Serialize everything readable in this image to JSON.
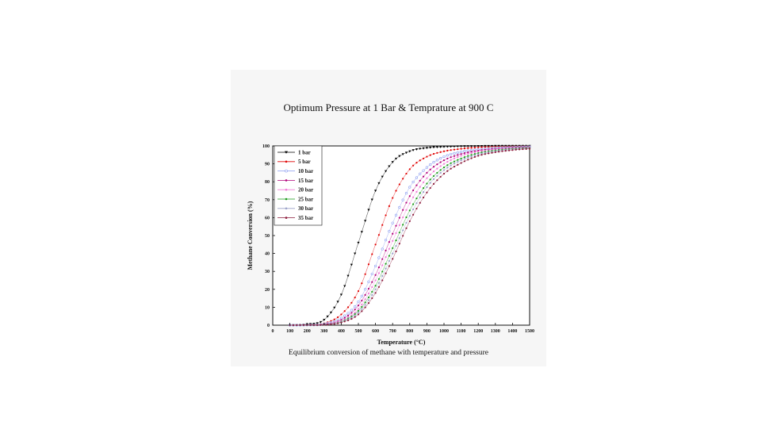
{
  "slide": {
    "title": "Optimum Pressure at 1 Bar & Temprature at  900 C",
    "caption": "Equilibrium conversion of methane with temperature and pressure"
  },
  "chart_data": {
    "type": "scatter",
    "xlabel": "Temperature (°C)",
    "ylabel": "Methane Conversion (%)",
    "xlim": [
      0,
      1500
    ],
    "ylim": [
      0,
      100
    ],
    "xticks": [
      0,
      100,
      200,
      300,
      400,
      500,
      600,
      700,
      800,
      900,
      1000,
      1100,
      1200,
      1300,
      1400,
      1500
    ],
    "yticks": [
      0,
      10,
      20,
      30,
      40,
      50,
      60,
      70,
      80,
      90,
      100
    ],
    "x": [
      100,
      200,
      300,
      400,
      500,
      600,
      700,
      800,
      900,
      1000,
      1100,
      1200,
      1300,
      1400,
      1500
    ],
    "legend_position": "top-left",
    "grid": false,
    "series": [
      {
        "name": "1 bar",
        "color": "#000000",
        "marker": "triangle-down",
        "values": [
          0.0,
          0.5,
          3,
          17,
          46,
          75,
          91,
          97,
          98.9,
          99.5,
          99.8,
          99.9,
          100,
          100,
          100
        ]
      },
      {
        "name": "5 bar",
        "color": "#e00000",
        "marker": "dot",
        "values": [
          0.0,
          0.2,
          1,
          6,
          19,
          45,
          71,
          87,
          94,
          97,
          98.4,
          99.2,
          99.5,
          99.7,
          99.8
        ]
      },
      {
        "name": "10 bar",
        "color": "#8a9cf0",
        "marker": "circle",
        "values": [
          0.0,
          0.1,
          0.6,
          4,
          13,
          33,
          57,
          77,
          88,
          94,
          96.7,
          98,
          98.8,
          99.2,
          99.5
        ]
      },
      {
        "name": "15 bar",
        "color": "#b0007a",
        "marker": "dot",
        "values": [
          0.0,
          0.1,
          0.5,
          3,
          11,
          28,
          51,
          72,
          85,
          92,
          95.5,
          97.4,
          98.4,
          99,
          99.3
        ]
      },
      {
        "name": "20 bar",
        "color": "#f07ad8",
        "marker": "dot",
        "values": [
          0.0,
          0.1,
          0.4,
          2.5,
          9,
          25,
          47,
          68,
          82,
          90,
          94.5,
          96.8,
          98,
          98.7,
          99.1
        ]
      },
      {
        "name": "25 bar",
        "color": "#1a9a1a",
        "marker": "dot",
        "values": [
          0.0,
          0.1,
          0.3,
          2,
          8,
          22,
          43,
          64,
          79,
          88,
          93,
          96,
          97.5,
          98.4,
          98.9
        ]
      },
      {
        "name": "30 bar",
        "color": "#9aa0c8",
        "marker": "dot",
        "values": [
          0.0,
          0.1,
          0.3,
          1.8,
          7,
          20,
          40,
          61,
          77,
          86.5,
          92,
          95.3,
          97,
          98,
          98.6
        ]
      },
      {
        "name": "35 bar",
        "color": "#8b1a3a",
        "marker": "dot",
        "values": [
          0.0,
          0.1,
          0.2,
          1.5,
          6,
          18,
          37,
          58,
          74,
          84.5,
          90.5,
          94.5,
          96.5,
          97.7,
          98.4
        ]
      }
    ]
  }
}
